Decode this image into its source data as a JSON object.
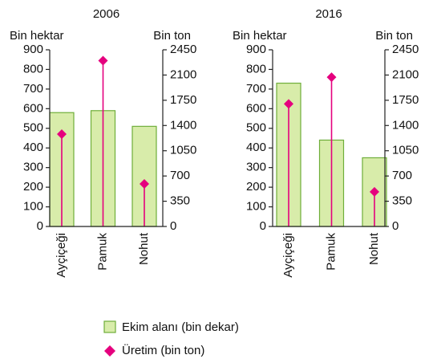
{
  "chart_data": [
    {
      "type": "bar",
      "title": "2006",
      "y_label": "Bin hektar",
      "y2_label": "Bin ton",
      "categories": [
        "Ayçiçeği",
        "Pamuk",
        "Nohut"
      ],
      "series": [
        {
          "name": "Ekim alanı (bin dekar)",
          "color": "#d8ecaa",
          "values": [
            580,
            590,
            510
          ]
        },
        {
          "name": "Üretim (bin ton)",
          "color": "#e5007e",
          "axis": "y2",
          "values": [
            1280,
            2300,
            590
          ]
        }
      ],
      "ylim": [
        0,
        900
      ],
      "yticks": [
        0,
        100,
        200,
        300,
        400,
        500,
        600,
        700,
        800,
        900
      ],
      "y2lim": [
        0,
        2450
      ],
      "y2ticks": [
        0,
        350,
        700,
        1050,
        1400,
        1750,
        2100,
        2450
      ]
    },
    {
      "type": "bar",
      "title": "2016",
      "y_label": "Bin hektar",
      "y2_label": "Bin ton",
      "categories": [
        "Ayçiçeği",
        "Pamuk",
        "Nohut"
      ],
      "series": [
        {
          "color": "#d8ecaa",
          "values": [
            730,
            440,
            350
          ]
        },
        {
          "color": "#e5007e",
          "axis": "y2",
          "values": [
            1700,
            2070,
            480
          ]
        }
      ],
      "ylim": [
        0,
        900
      ],
      "yticks": [
        0,
        100,
        200,
        300,
        400,
        500,
        600,
        700,
        800,
        900
      ],
      "y2lim": [
        0,
        2450
      ],
      "y2ticks": [
        0,
        350,
        700,
        1050,
        1400,
        1750,
        2100,
        2450
      ]
    }
  ]
}
